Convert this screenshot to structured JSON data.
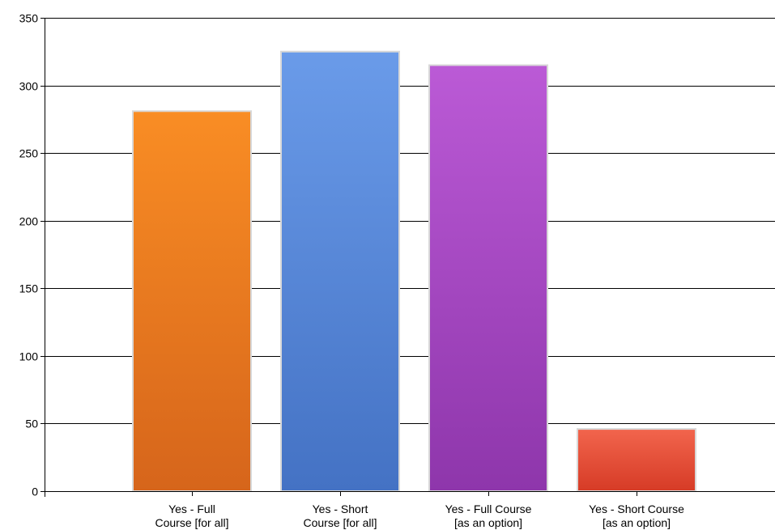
{
  "chart_data": {
    "type": "bar",
    "categories": [
      [
        "Yes - Full",
        "Course [for all]"
      ],
      [
        "Yes - Short",
        "Course [for all]"
      ],
      [
        "Yes - Full Course",
        "[as an option]"
      ],
      [
        "Yes - Short Course",
        "[as an option]"
      ]
    ],
    "values": [
      281,
      325,
      315,
      46
    ],
    "colors": [
      [
        "#f98d24",
        "#d6651b"
      ],
      [
        "#6a9be9",
        "#4472c4"
      ],
      [
        "#bb5ad6",
        "#8e36ab"
      ],
      [
        "#f2654d",
        "#d63b26"
      ]
    ],
    "ylim": [
      0,
      350
    ],
    "yticks": [
      0,
      50,
      100,
      150,
      200,
      250,
      300,
      350
    ],
    "grid": true,
    "title": "",
    "xlabel": "",
    "ylabel": ""
  }
}
